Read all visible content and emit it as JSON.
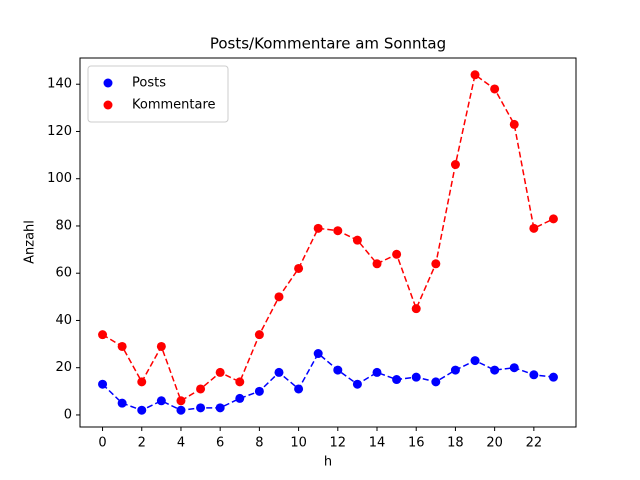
{
  "chart_data": {
    "type": "line",
    "title": "Posts/Kommentare am Sonntag",
    "xlabel": "h",
    "ylabel": "Anzahl",
    "x": [
      0,
      1,
      2,
      3,
      4,
      5,
      6,
      7,
      8,
      9,
      10,
      11,
      12,
      13,
      14,
      15,
      16,
      17,
      18,
      19,
      20,
      21,
      22,
      23
    ],
    "series": [
      {
        "name": "Posts",
        "color": "#0000ff",
        "values": [
          13,
          5,
          2,
          6,
          2,
          3,
          3,
          7,
          10,
          18,
          11,
          26,
          19,
          13,
          18,
          15,
          16,
          14,
          19,
          23,
          19,
          20,
          17,
          16
        ]
      },
      {
        "name": "Kommentare",
        "color": "#ff0000",
        "values": [
          34,
          29,
          14,
          29,
          6,
          11,
          18,
          14,
          34,
          50,
          62,
          79,
          78,
          74,
          64,
          68,
          45,
          64,
          106,
          144,
          138,
          123,
          79,
          83
        ]
      }
    ],
    "xlim": [
      -1.15,
      24.15
    ],
    "xticks": [
      0,
      2,
      4,
      6,
      8,
      10,
      12,
      14,
      16,
      18,
      20,
      22
    ],
    "ylim": [
      -5.1,
      151.1
    ],
    "yticks": [
      0,
      20,
      40,
      60,
      80,
      100,
      120,
      140
    ],
    "legend": "upper left",
    "linestyle": "dashed"
  }
}
